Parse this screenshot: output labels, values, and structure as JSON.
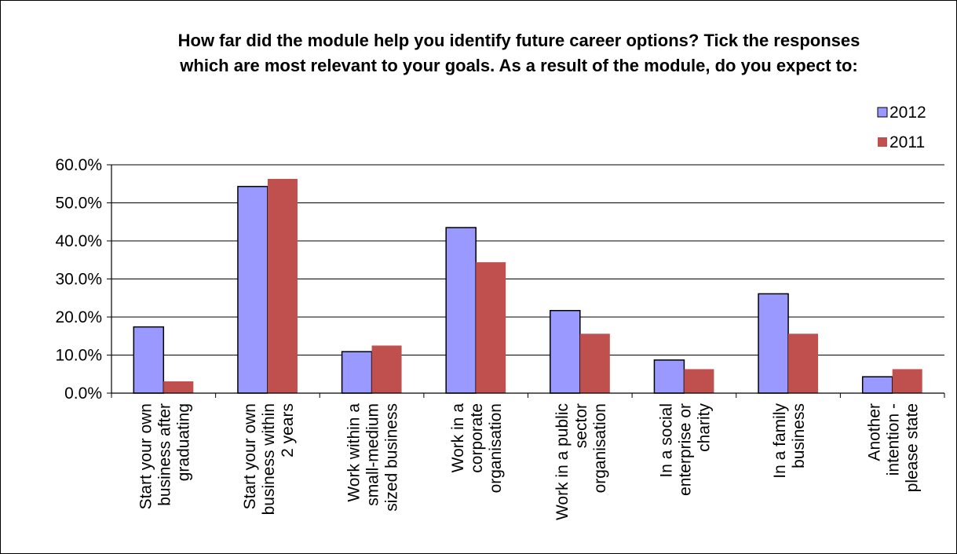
{
  "chart_data": {
    "type": "bar",
    "title": [
      "How far did the module help you identify future career options?  Tick the responses",
      "which are most relevant to your goals.  As a result of the module, do you expect to:"
    ],
    "categories": [
      [
        "Start your own",
        "business after",
        "graduating"
      ],
      [
        "Start your own",
        "business within",
        "2 years"
      ],
      [
        "Work within a",
        "small-medium",
        "sized business"
      ],
      [
        "Work in a",
        "corporate",
        "organisation"
      ],
      [
        "Work in a public",
        "sector",
        "organisation"
      ],
      [
        "In a social",
        "enterprise or",
        "charity"
      ],
      [
        "In a family",
        "business"
      ],
      [
        "Another",
        "intention  -",
        "please state"
      ]
    ],
    "series": [
      {
        "name": "2012",
        "color": "#9999FF",
        "values": [
          17.4,
          54.3,
          10.9,
          43.5,
          21.7,
          8.7,
          26.1,
          4.3
        ]
      },
      {
        "name": "2011",
        "color": "#C0504D",
        "values": [
          3.1,
          56.3,
          12.5,
          34.4,
          15.6,
          6.3,
          15.6,
          6.3
        ]
      }
    ],
    "ylim": [
      0,
      60
    ],
    "yticks": [
      "0.0%",
      "10.0%",
      "20.0%",
      "30.0%",
      "40.0%",
      "50.0%",
      "60.0%"
    ],
    "grid": true,
    "legend_position": "top-right",
    "xlabel": "",
    "ylabel": ""
  }
}
